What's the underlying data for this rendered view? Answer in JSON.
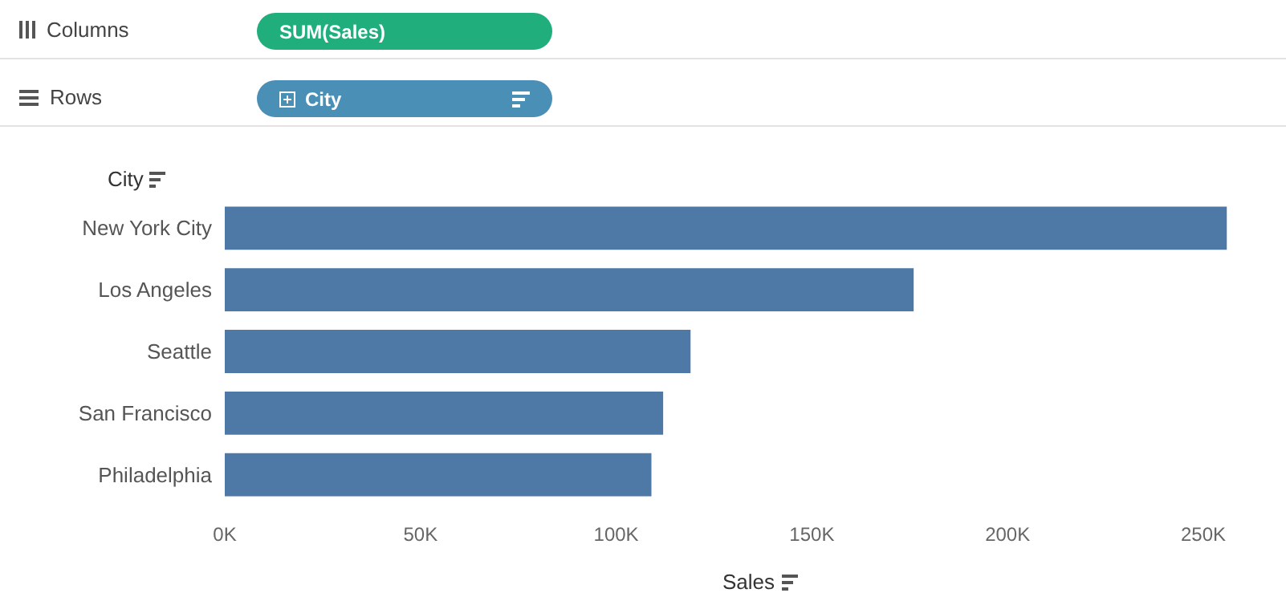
{
  "chart_data": {
    "type": "bar",
    "orientation": "horizontal",
    "xlabel": "Sales",
    "ylabel": "City",
    "categories": [
      "New York City",
      "Los Angeles",
      "Seattle",
      "San Francisco",
      "Philadelphia"
    ],
    "values": [
      256000,
      176000,
      119000,
      112000,
      109000
    ],
    "color": "#4e79a7",
    "xlim": [
      0,
      258000
    ],
    "xticks": [
      {
        "value": 0,
        "label": "0K"
      },
      {
        "value": 50000,
        "label": "50K"
      },
      {
        "value": 100000,
        "label": "100K"
      },
      {
        "value": 150000,
        "label": "150K"
      },
      {
        "value": 200000,
        "label": "200K"
      },
      {
        "value": 250000,
        "label": "250K"
      }
    ],
    "grid": false,
    "annotations": [
      "Columns",
      "SUM(Sales)",
      "Rows",
      "City"
    ]
  }
}
